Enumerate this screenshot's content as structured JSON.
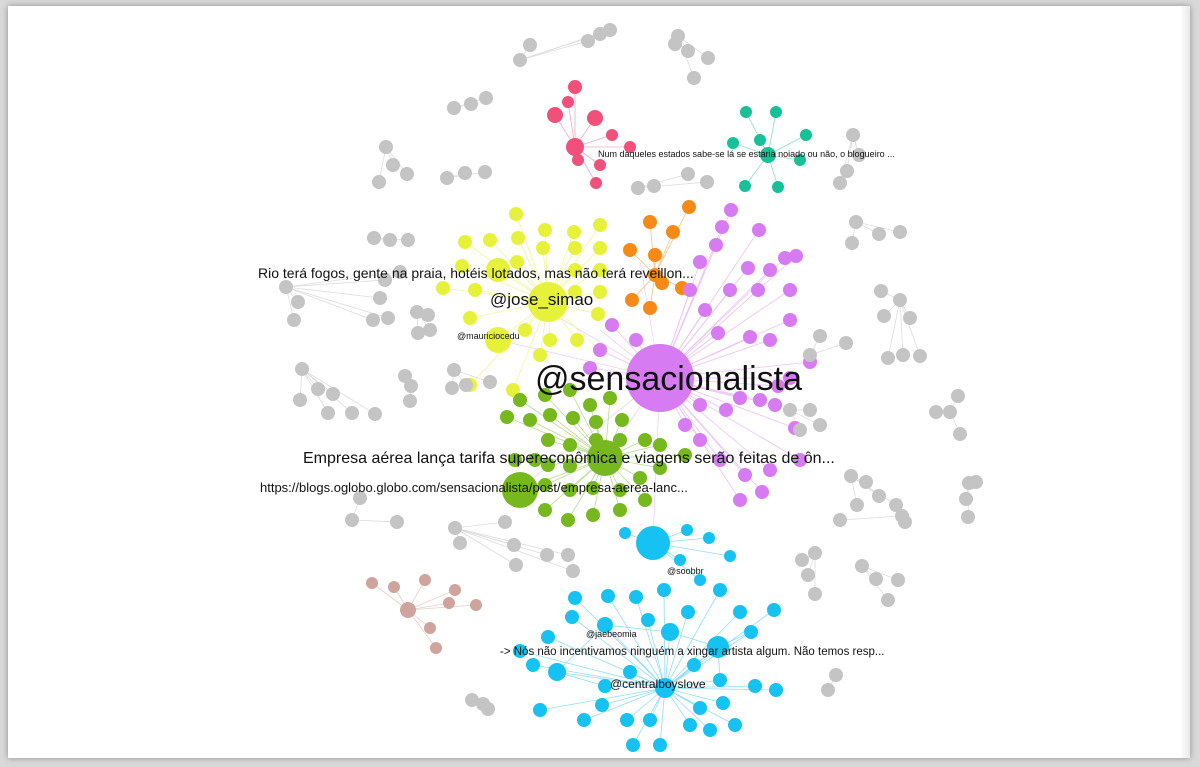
{
  "colors": {
    "background": "#ffffff",
    "gray": "#c4c4c4",
    "pink": "#f0507a",
    "teal": "#17c197",
    "yellow": "#e6f23a",
    "orange": "#f78a16",
    "purple": "#d67bf2",
    "green": "#76b81e",
    "cyan": "#16c2f1",
    "rose": "#cfa49c"
  },
  "labels": {
    "sensacionalista": "@sensacionalista",
    "jose_simao": "@jose_simao",
    "mauriciocedu": "@mauriciocedu",
    "rio_tweet": "Rio terá fogos, gente na praia, hotéis lotados, mas não terá reveillon...",
    "empresa_tweet": "Empresa aérea lança tarifa supereconômica e viagens serão feitas de ôn...",
    "oglobo_url": "https://blogs.oglobo.globo.com/sensacionalista/post/empresa-aerea-lanc...",
    "num_tweet": "Num daqueles estados sabe-se lá se estaria noiado ou não, o blogueiro ...",
    "soobbr": "@soobbr",
    "jaebeomia": "@jaebeomia",
    "nos_tweet": "-> Nós não incentivamos ninguém a xingar artista algum. Não temos resp...",
    "centralboyslove": "@centralboyslove"
  }
}
